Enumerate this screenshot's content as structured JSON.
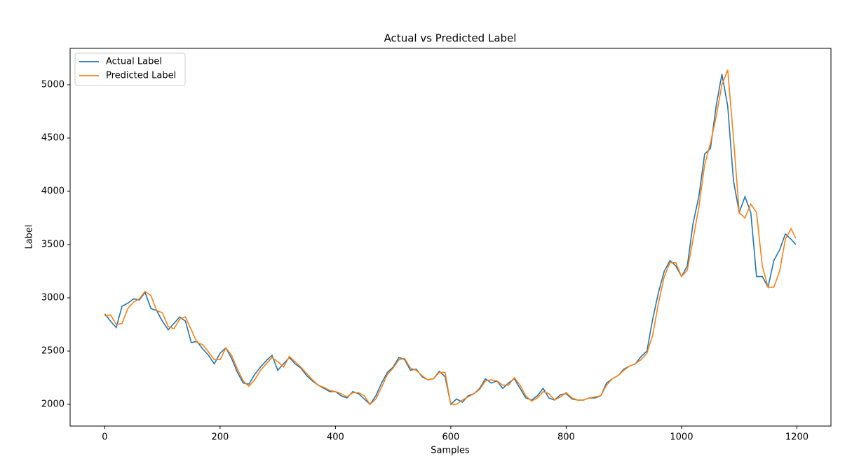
{
  "chart_data": {
    "type": "line",
    "title": "Actual vs Predicted Label",
    "x_label": "Samples",
    "y_label": "Label",
    "x": [
      0,
      10,
      20,
      30,
      40,
      50,
      60,
      70,
      80,
      90,
      100,
      110,
      120,
      130,
      140,
      150,
      160,
      170,
      180,
      190,
      200,
      210,
      220,
      230,
      240,
      250,
      260,
      270,
      280,
      290,
      300,
      310,
      320,
      330,
      340,
      350,
      360,
      370,
      380,
      390,
      400,
      410,
      420,
      430,
      440,
      450,
      460,
      470,
      480,
      490,
      500,
      510,
      520,
      530,
      540,
      550,
      560,
      570,
      580,
      590,
      600,
      610,
      620,
      630,
      640,
      650,
      660,
      670,
      680,
      690,
      700,
      710,
      720,
      730,
      740,
      750,
      760,
      770,
      780,
      790,
      800,
      810,
      820,
      830,
      840,
      850,
      860,
      870,
      880,
      890,
      900,
      910,
      920,
      930,
      940,
      950,
      960,
      970,
      980,
      990,
      1000,
      1010,
      1020,
      1030,
      1040,
      1050,
      1060,
      1070,
      1080,
      1090,
      1100,
      1110,
      1120,
      1130,
      1140,
      1150,
      1160,
      1170,
      1180,
      1190,
      1198
    ],
    "series": [
      {
        "name": "Actual Label",
        "color": "#1f77b4",
        "values": [
          2850,
          2780,
          2720,
          2920,
          2950,
          2990,
          2980,
          3050,
          2900,
          2880,
          2780,
          2700,
          2760,
          2820,
          2780,
          2580,
          2590,
          2520,
          2460,
          2380,
          2480,
          2530,
          2430,
          2300,
          2200,
          2190,
          2280,
          2350,
          2410,
          2460,
          2320,
          2380,
          2440,
          2380,
          2340,
          2270,
          2220,
          2180,
          2150,
          2120,
          2120,
          2080,
          2060,
          2120,
          2100,
          2050,
          2000,
          2080,
          2200,
          2300,
          2350,
          2440,
          2420,
          2320,
          2330,
          2260,
          2230,
          2240,
          2310,
          2260,
          2000,
          2050,
          2020,
          2080,
          2100,
          2150,
          2240,
          2200,
          2220,
          2150,
          2200,
          2240,
          2150,
          2060,
          2040,
          2080,
          2150,
          2060,
          2040,
          2090,
          2100,
          2050,
          2040,
          2040,
          2060,
          2060,
          2080,
          2200,
          2240,
          2270,
          2330,
          2360,
          2380,
          2450,
          2500,
          2800,
          3050,
          3250,
          3350,
          3300,
          3200,
          3300,
          3700,
          3950,
          4350,
          4400,
          4800,
          5100,
          4800,
          4100,
          3800,
          3950,
          3800,
          3200,
          3200,
          3100,
          3350,
          3450,
          3600,
          3550,
          3500
        ]
      },
      {
        "name": "Predicted Label",
        "color": "#ff7f0e",
        "values": [
          2830,
          2840,
          2750,
          2760,
          2900,
          2960,
          2990,
          3060,
          3020,
          2880,
          2860,
          2730,
          2710,
          2800,
          2820,
          2700,
          2580,
          2560,
          2490,
          2420,
          2420,
          2530,
          2460,
          2330,
          2220,
          2170,
          2230,
          2320,
          2380,
          2440,
          2400,
          2350,
          2450,
          2400,
          2350,
          2290,
          2230,
          2180,
          2160,
          2130,
          2120,
          2100,
          2070,
          2110,
          2110,
          2080,
          2000,
          2050,
          2160,
          2280,
          2340,
          2420,
          2430,
          2340,
          2320,
          2270,
          2230,
          2240,
          2300,
          2300,
          2000,
          2000,
          2040,
          2070,
          2100,
          2140,
          2220,
          2230,
          2220,
          2180,
          2180,
          2250,
          2180,
          2080,
          2030,
          2060,
          2120,
          2100,
          2040,
          2070,
          2110,
          2060,
          2040,
          2040,
          2060,
          2070,
          2080,
          2180,
          2240,
          2270,
          2320,
          2360,
          2380,
          2420,
          2480,
          2650,
          2950,
          3200,
          3330,
          3330,
          3200,
          3260,
          3550,
          3850,
          4250,
          4450,
          4700,
          5000,
          5140,
          4500,
          3800,
          3750,
          3880,
          3800,
          3300,
          3100,
          3100,
          3250,
          3550,
          3650,
          3560
        ]
      }
    ],
    "xlim": [
      -60,
      1259
    ],
    "ylim": [
      1796,
      5342
    ],
    "xticks": [
      0,
      200,
      400,
      600,
      800,
      1000,
      1200
    ],
    "yticks": [
      2000,
      2500,
      3000,
      3500,
      4000,
      4500,
      5000
    ],
    "legend": "upper left"
  }
}
